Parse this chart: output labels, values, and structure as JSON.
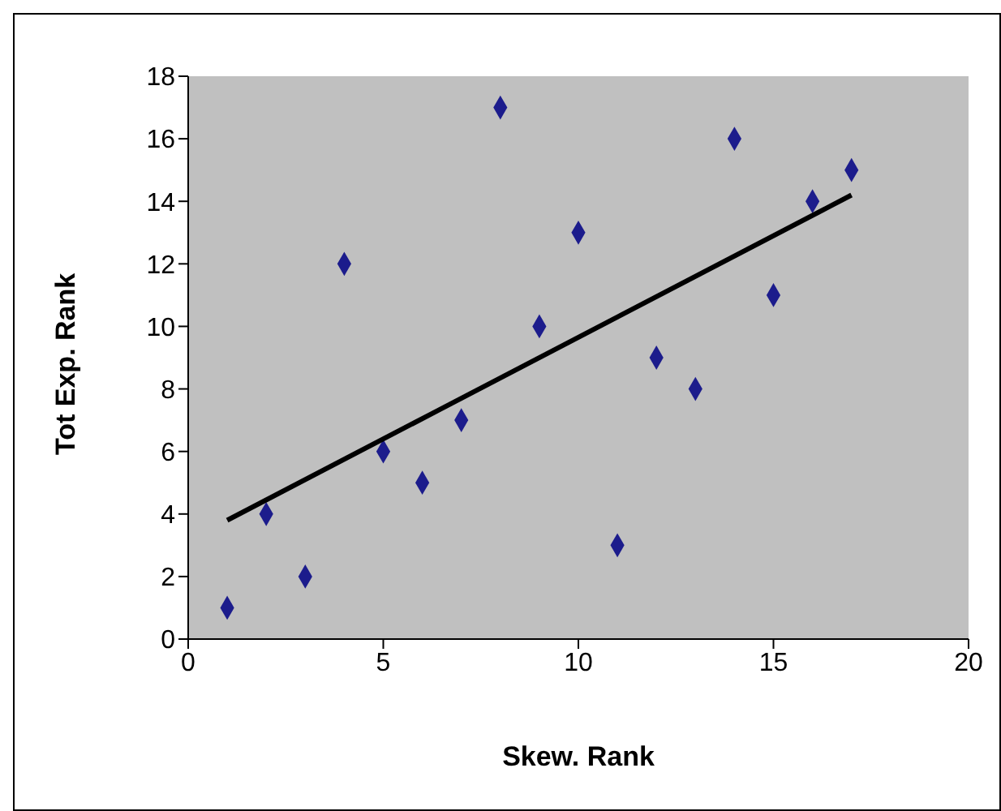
{
  "chart_data": {
    "type": "scatter",
    "xlabel": "Skew. Rank",
    "ylabel": "Tot Exp. Rank",
    "x": [
      1,
      2,
      3,
      4,
      5,
      6,
      7,
      8,
      9,
      10,
      11,
      12,
      13,
      14,
      15,
      16,
      17
    ],
    "series": [
      {
        "type": "scatter",
        "color": "#1c1c8c",
        "marker": "diamond",
        "values": [
          1,
          4,
          2,
          12,
          6,
          5,
          7,
          17,
          10,
          13,
          3,
          9,
          8,
          16,
          11,
          14,
          15
        ]
      },
      {
        "type": "line",
        "color": "#000000",
        "x": [
          1,
          17
        ],
        "values": [
          3.8,
          14.2
        ],
        "marker": "none",
        "line_style": "solid"
      }
    ],
    "xlim": [
      0,
      20
    ],
    "xticks": [
      0,
      5,
      10,
      15,
      20
    ],
    "ylim": [
      0,
      18
    ],
    "yticks": [
      0,
      2,
      4,
      6,
      8,
      10,
      12,
      14,
      16,
      18
    ],
    "grid": false,
    "legend": false
  }
}
